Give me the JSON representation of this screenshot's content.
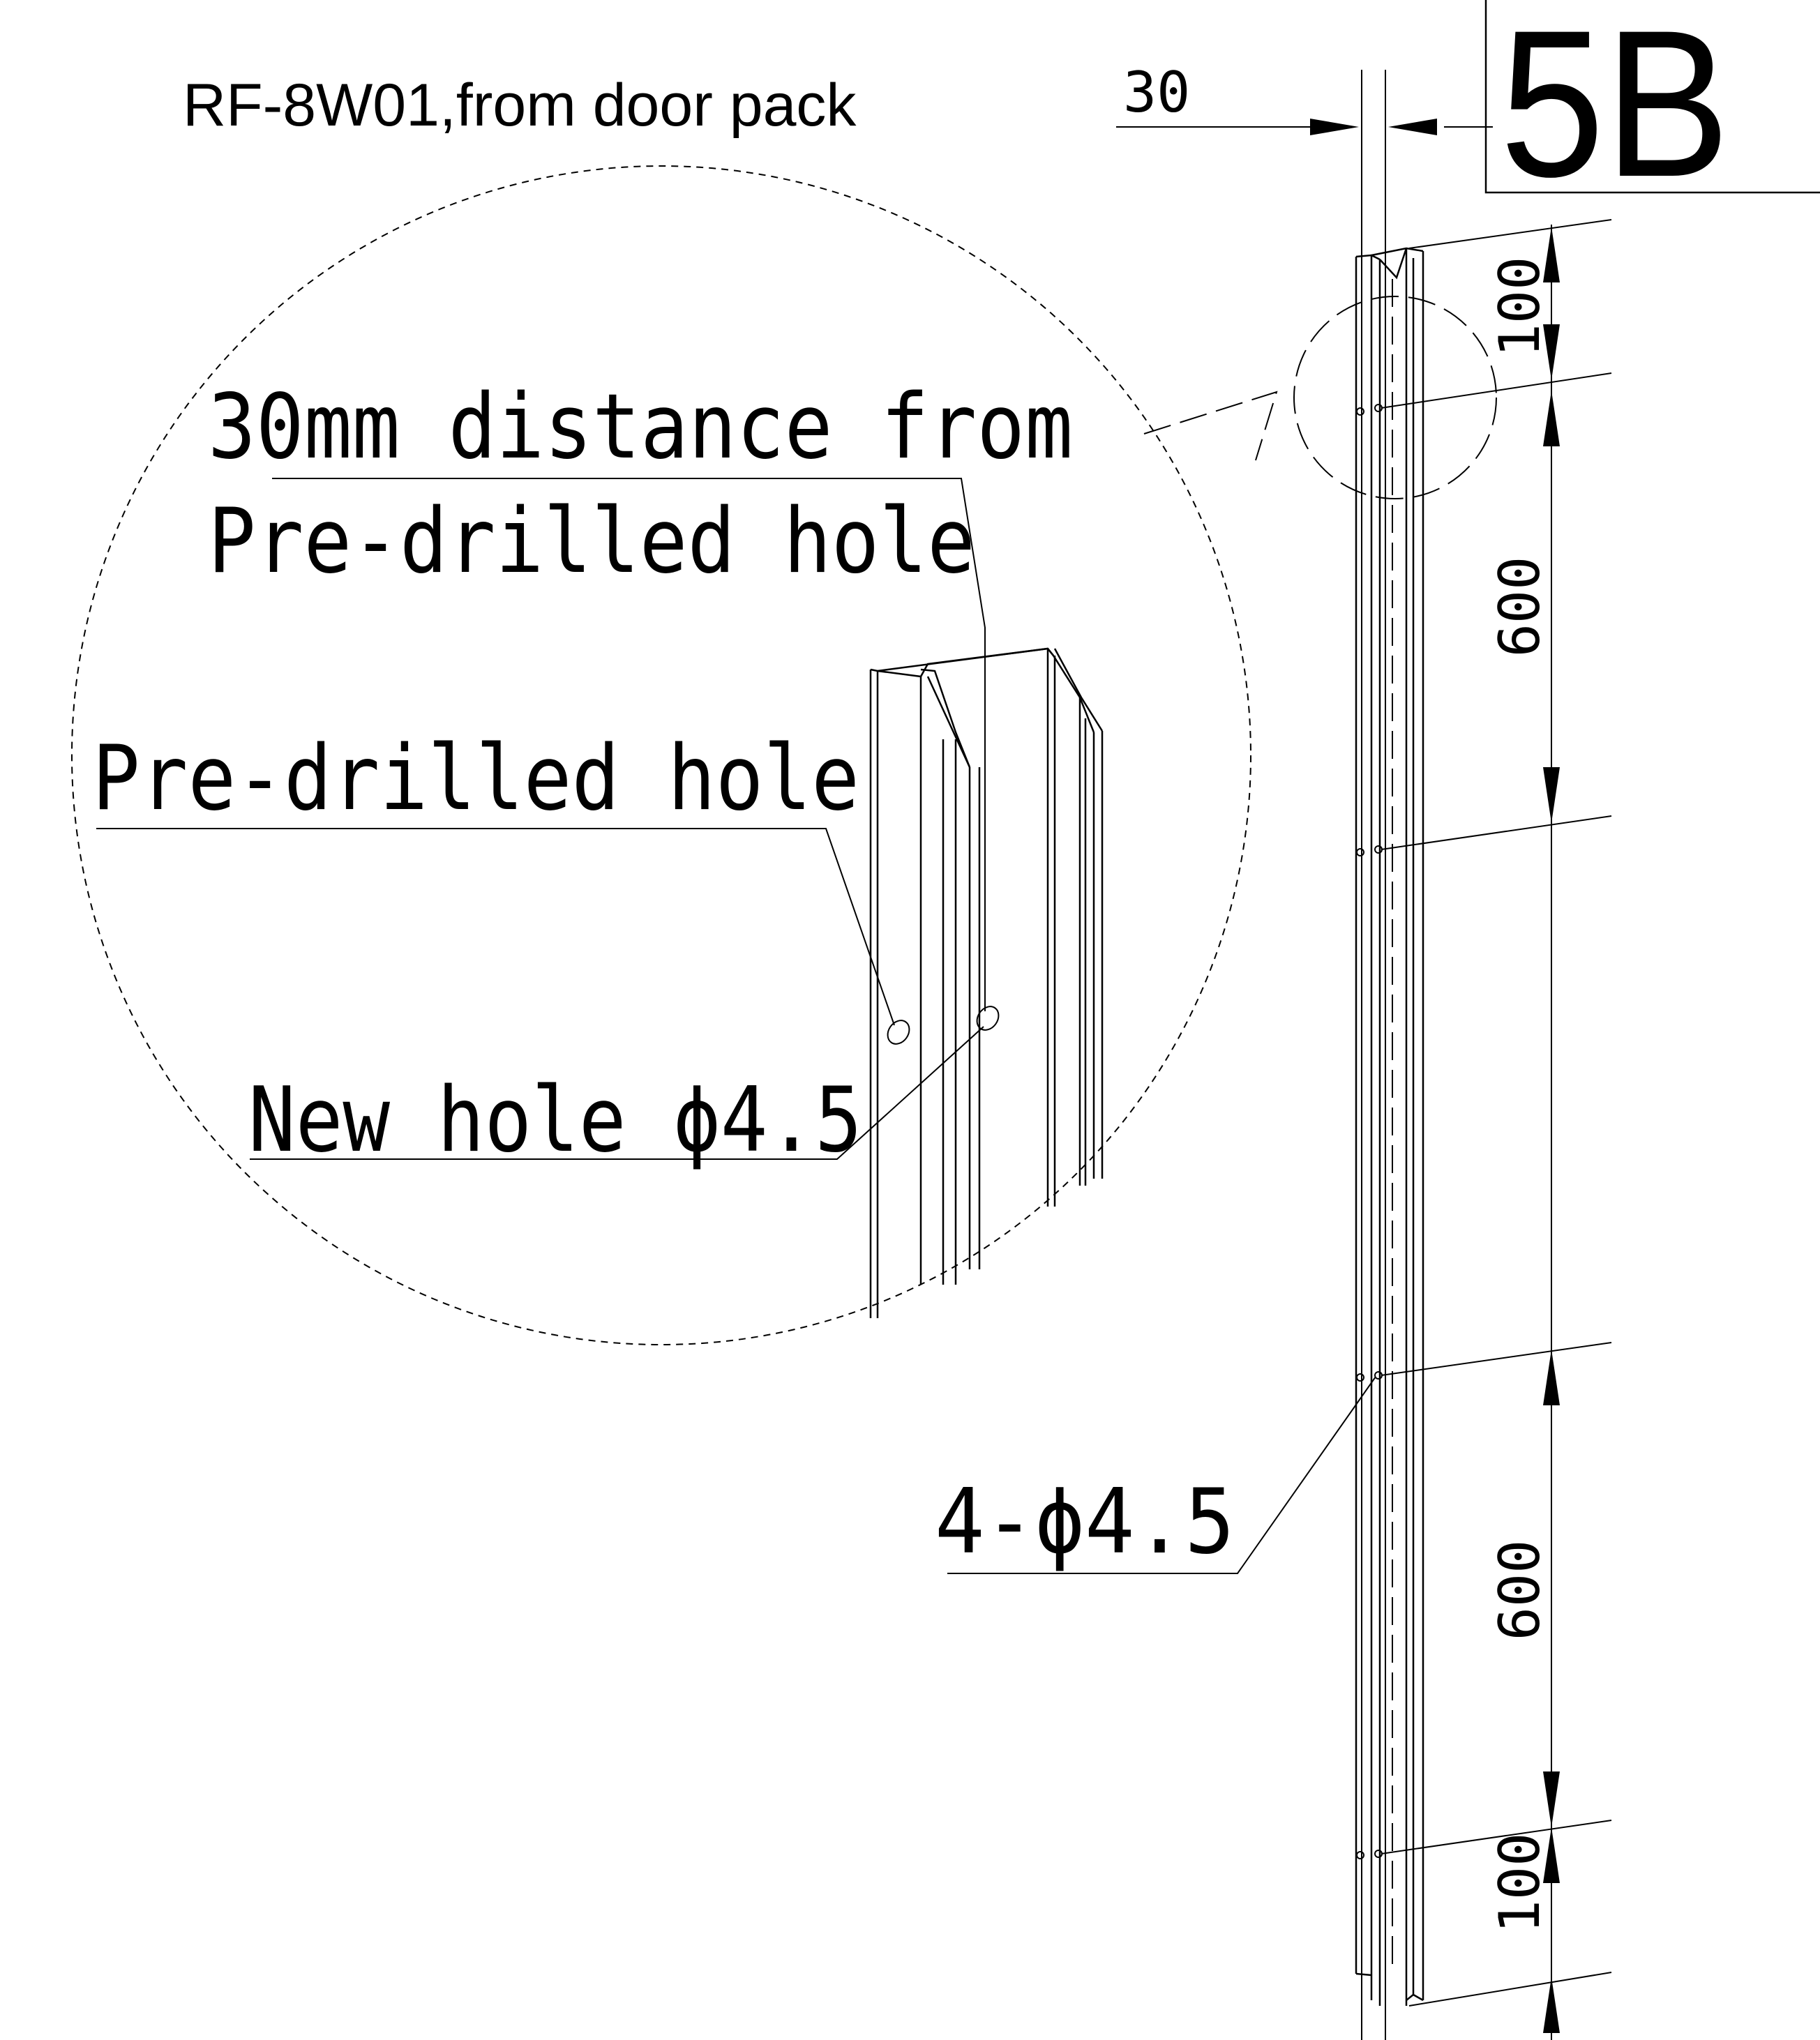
{
  "title": "RF-8W01,from door pack",
  "sheet_label": "5B",
  "dimensions": {
    "width": "30",
    "top_offset": "100",
    "upper_spacing": "600",
    "lower_spacing": "600",
    "bottom_offset": "100"
  },
  "callouts": {
    "distance_line1": "30mm distance from",
    "distance_line2": "Pre-drilled hole",
    "predrilled": "Pre-drilled hole",
    "new_hole": "New hole ϕ4.5",
    "holes_count": "4-ϕ4.5"
  }
}
